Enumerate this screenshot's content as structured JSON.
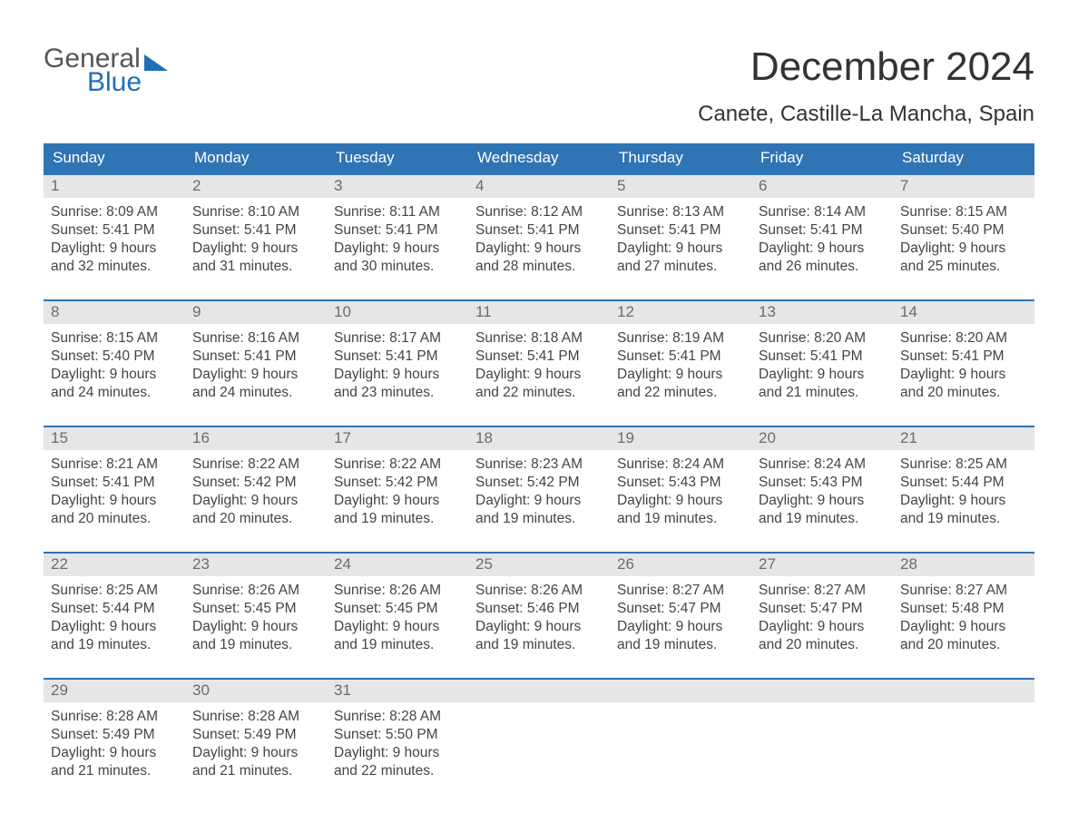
{
  "colors": {
    "header_bg": "#2f74b5",
    "header_text": "#ffffff",
    "week_divider": "#2f74b5",
    "daynum_bg": "#e6e6e6",
    "daynum_text": "#6b6b6b",
    "body_text": "#444444",
    "page_bg": "#ffffff",
    "logo_blue": "#1e70b8",
    "logo_gray": "#555555"
  },
  "logo": {
    "line1": "General",
    "line2": "Blue"
  },
  "title": "December 2024",
  "location": "Canete, Castille-La Mancha, Spain",
  "days_of_week": [
    "Sunday",
    "Monday",
    "Tuesday",
    "Wednesday",
    "Thursday",
    "Friday",
    "Saturday"
  ],
  "weeks": [
    [
      {
        "n": "1",
        "sr": "8:09 AM",
        "ss": "5:41 PM",
        "dl": "9 hours and 32 minutes."
      },
      {
        "n": "2",
        "sr": "8:10 AM",
        "ss": "5:41 PM",
        "dl": "9 hours and 31 minutes."
      },
      {
        "n": "3",
        "sr": "8:11 AM",
        "ss": "5:41 PM",
        "dl": "9 hours and 30 minutes."
      },
      {
        "n": "4",
        "sr": "8:12 AM",
        "ss": "5:41 PM",
        "dl": "9 hours and 28 minutes."
      },
      {
        "n": "5",
        "sr": "8:13 AM",
        "ss": "5:41 PM",
        "dl": "9 hours and 27 minutes."
      },
      {
        "n": "6",
        "sr": "8:14 AM",
        "ss": "5:41 PM",
        "dl": "9 hours and 26 minutes."
      },
      {
        "n": "7",
        "sr": "8:15 AM",
        "ss": "5:40 PM",
        "dl": "9 hours and 25 minutes."
      }
    ],
    [
      {
        "n": "8",
        "sr": "8:15 AM",
        "ss": "5:40 PM",
        "dl": "9 hours and 24 minutes."
      },
      {
        "n": "9",
        "sr": "8:16 AM",
        "ss": "5:41 PM",
        "dl": "9 hours and 24 minutes."
      },
      {
        "n": "10",
        "sr": "8:17 AM",
        "ss": "5:41 PM",
        "dl": "9 hours and 23 minutes."
      },
      {
        "n": "11",
        "sr": "8:18 AM",
        "ss": "5:41 PM",
        "dl": "9 hours and 22 minutes."
      },
      {
        "n": "12",
        "sr": "8:19 AM",
        "ss": "5:41 PM",
        "dl": "9 hours and 22 minutes."
      },
      {
        "n": "13",
        "sr": "8:20 AM",
        "ss": "5:41 PM",
        "dl": "9 hours and 21 minutes."
      },
      {
        "n": "14",
        "sr": "8:20 AM",
        "ss": "5:41 PM",
        "dl": "9 hours and 20 minutes."
      }
    ],
    [
      {
        "n": "15",
        "sr": "8:21 AM",
        "ss": "5:41 PM",
        "dl": "9 hours and 20 minutes."
      },
      {
        "n": "16",
        "sr": "8:22 AM",
        "ss": "5:42 PM",
        "dl": "9 hours and 20 minutes."
      },
      {
        "n": "17",
        "sr": "8:22 AM",
        "ss": "5:42 PM",
        "dl": "9 hours and 19 minutes."
      },
      {
        "n": "18",
        "sr": "8:23 AM",
        "ss": "5:42 PM",
        "dl": "9 hours and 19 minutes."
      },
      {
        "n": "19",
        "sr": "8:24 AM",
        "ss": "5:43 PM",
        "dl": "9 hours and 19 minutes."
      },
      {
        "n": "20",
        "sr": "8:24 AM",
        "ss": "5:43 PM",
        "dl": "9 hours and 19 minutes."
      },
      {
        "n": "21",
        "sr": "8:25 AM",
        "ss": "5:44 PM",
        "dl": "9 hours and 19 minutes."
      }
    ],
    [
      {
        "n": "22",
        "sr": "8:25 AM",
        "ss": "5:44 PM",
        "dl": "9 hours and 19 minutes."
      },
      {
        "n": "23",
        "sr": "8:26 AM",
        "ss": "5:45 PM",
        "dl": "9 hours and 19 minutes."
      },
      {
        "n": "24",
        "sr": "8:26 AM",
        "ss": "5:45 PM",
        "dl": "9 hours and 19 minutes."
      },
      {
        "n": "25",
        "sr": "8:26 AM",
        "ss": "5:46 PM",
        "dl": "9 hours and 19 minutes."
      },
      {
        "n": "26",
        "sr": "8:27 AM",
        "ss": "5:47 PM",
        "dl": "9 hours and 19 minutes."
      },
      {
        "n": "27",
        "sr": "8:27 AM",
        "ss": "5:47 PM",
        "dl": "9 hours and 20 minutes."
      },
      {
        "n": "28",
        "sr": "8:27 AM",
        "ss": "5:48 PM",
        "dl": "9 hours and 20 minutes."
      }
    ],
    [
      {
        "n": "29",
        "sr": "8:28 AM",
        "ss": "5:49 PM",
        "dl": "9 hours and 21 minutes."
      },
      {
        "n": "30",
        "sr": "8:28 AM",
        "ss": "5:49 PM",
        "dl": "9 hours and 21 minutes."
      },
      {
        "n": "31",
        "sr": "8:28 AM",
        "ss": "5:50 PM",
        "dl": "9 hours and 22 minutes."
      },
      null,
      null,
      null,
      null
    ]
  ],
  "labels": {
    "sunrise": "Sunrise: ",
    "sunset": "Sunset: ",
    "daylight": "Daylight: "
  }
}
